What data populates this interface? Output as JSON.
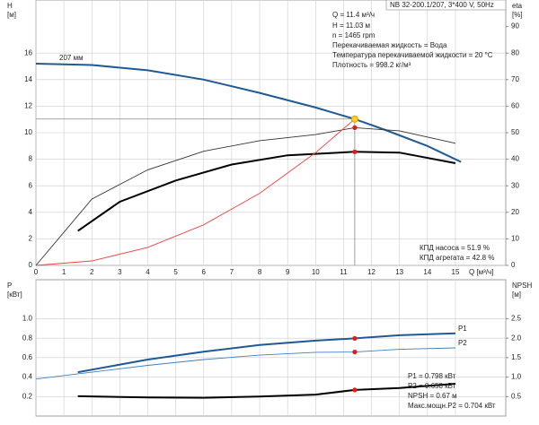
{
  "chart_data": [
    {
      "type": "line",
      "title": "NB 32-200.1/207, 3*400 V, 50Hz",
      "ylabel": "H",
      "yunit": "[м]",
      "y2label": "eta",
      "y2unit": "[%]",
      "xlabel": "Q [м³/ч]",
      "xlim": [
        0,
        16.8
      ],
      "xticks": [
        0,
        1,
        2,
        3,
        4,
        5,
        6,
        7,
        8,
        9,
        10,
        11,
        12,
        13,
        14,
        15
      ],
      "ylim": [
        0,
        20
      ],
      "yticks": [
        0,
        2,
        4,
        6,
        8,
        10,
        12,
        14,
        16
      ],
      "y2lim": [
        0,
        100
      ],
      "y2ticks": [
        0,
        10,
        20,
        30,
        40,
        50,
        60,
        70,
        80,
        90
      ],
      "grid": true,
      "series": [
        {
          "name": "207 мм",
          "color": "#1f5a96",
          "line": "thick",
          "x": [
            0,
            2,
            4,
            6,
            8,
            10,
            11.4,
            12.5,
            14,
            15.2
          ],
          "values": [
            15.2,
            15.1,
            14.7,
            14.0,
            13.0,
            11.9,
            11.03,
            10.2,
            9.0,
            7.8
          ]
        },
        {
          "color": "#333333",
          "line": "thin",
          "axis": "y2",
          "x": [
            0,
            2,
            4,
            6,
            8,
            10,
            11.4,
            13,
            15
          ],
          "values": [
            0,
            25,
            36,
            43,
            47,
            49.3,
            51.9,
            50.7,
            46
          ]
        },
        {
          "color": "#000000",
          "line": "thick",
          "axis": "y2",
          "x": [
            1.5,
            3,
            5,
            7,
            9,
            11.4,
            13,
            15
          ],
          "values": [
            13,
            24,
            32,
            38,
            41.5,
            42.8,
            42.5,
            38.5
          ]
        },
        {
          "color": "#f04040",
          "line": "thin",
          "x": [
            0,
            2,
            4,
            6,
            8,
            10,
            11.4
          ],
          "values": [
            0,
            0.34,
            1.36,
            3.06,
            5.43,
            8.49,
            11.03
          ]
        }
      ],
      "duty_point": {
        "q": 11.4,
        "h": 11.03,
        "eta_pump": 51.9,
        "eta_unit": 42.8
      },
      "annotations": [
        "Q = 11.4 м³/ч",
        "H = 11.03 м",
        "n = 1465 rpm",
        "Перекачиваемая жидкость = Вода",
        "Температура перекачиваемой жидкости = 20 °C",
        "Плотность = 998.2 кг/м³",
        "КПД насоса = 51.9 %",
        "КПД агрегата = 42.8 %"
      ]
    },
    {
      "type": "line",
      "ylabel": "P",
      "yunit": "[кВт]",
      "y2label": "NPSH",
      "y2unit": "[м]",
      "xlim": [
        0,
        16.8
      ],
      "ylim": [
        0,
        1.4
      ],
      "yticks": [
        0.2,
        0.4,
        0.6,
        0.8,
        {
          "value": 1,
          "label": "1.0"
        }
      ],
      "y2lim": [
        0,
        3.5
      ],
      "y2ticks": [
        0.5,
        {
          "value": 1,
          "label": "1.0"
        },
        1.5,
        {
          "value": 2,
          "label": "2.0"
        },
        2.5
      ],
      "grid": true,
      "series": [
        {
          "name": "P1",
          "color": "#1f5a96",
          "line": "thick",
          "x": [
            1.5,
            4,
            6,
            8,
            10,
            11.4,
            13,
            15
          ],
          "values": [
            0.45,
            0.58,
            0.66,
            0.73,
            0.775,
            0.798,
            0.83,
            0.85
          ]
        },
        {
          "name": "P2",
          "color": "#3f7fc0",
          "line": "thin",
          "x": [
            0,
            2,
            4,
            6,
            8,
            10,
            11.4,
            13,
            15
          ],
          "values": [
            0.38,
            0.45,
            0.52,
            0.58,
            0.625,
            0.655,
            0.658,
            0.685,
            0.7
          ]
        },
        {
          "color": "#000000",
          "line": "thick",
          "axis": "y2",
          "x": [
            1.5,
            4,
            6,
            8,
            10,
            11.4,
            13,
            15
          ],
          "values": [
            0.51,
            0.48,
            0.47,
            0.5,
            0.55,
            0.67,
            0.72,
            0.83
          ]
        }
      ],
      "duty_point": {
        "q": 11.4,
        "p1": 0.798,
        "p2": 0.658,
        "npsh": 0.67
      },
      "annotations": [
        "P1 = 0.798 кВт",
        "P2 = 0.658 кВт",
        "NPSH = 0.67 м",
        "Макс.мощн.P2 = 0.704 кВт"
      ]
    }
  ]
}
